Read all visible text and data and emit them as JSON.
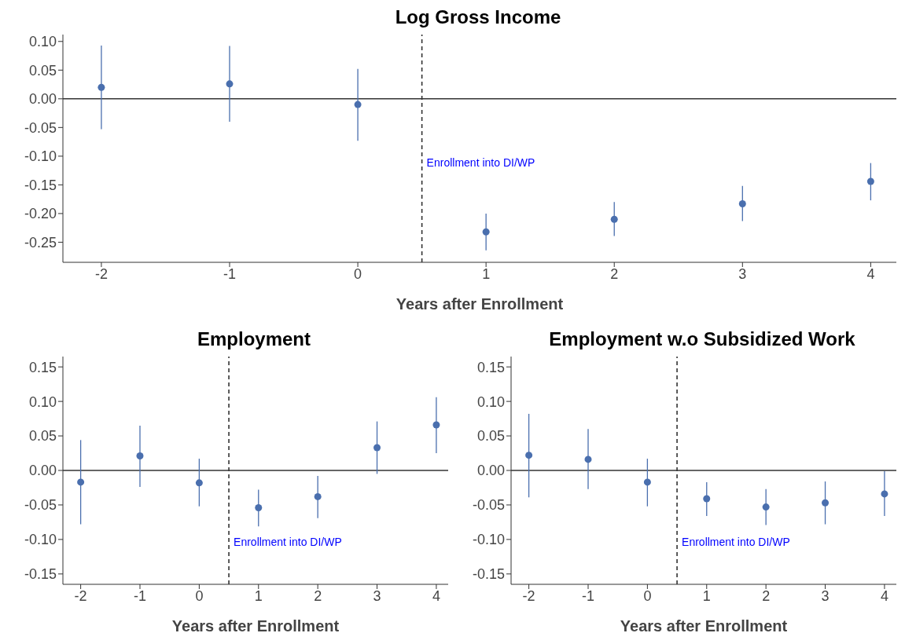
{
  "chart_data": [
    {
      "type": "scatter",
      "title": "Log Gross Income",
      "xlabel": "Years after Enrollment",
      "x": [
        -2,
        -1,
        0,
        1,
        2,
        3,
        4
      ],
      "xlim": [
        -2.3,
        4.2
      ],
      "xticks": [
        -2,
        -1,
        0,
        1,
        2,
        3,
        4
      ],
      "ylim": [
        -0.285,
        0.112
      ],
      "yticks": [
        {
          "value": 0.1,
          "label": "0.10"
        },
        {
          "value": 0.05,
          "label": "0.05"
        },
        {
          "value": 0,
          "label": "0.00"
        },
        {
          "value": -0.05,
          "label": "-0.05"
        },
        {
          "value": -0.1,
          "label": "-0.10"
        },
        {
          "value": -0.15,
          "label": "-0.15"
        },
        {
          "value": -0.2,
          "label": "-0.20"
        },
        {
          "value": -0.25,
          "label": "-0.25"
        }
      ],
      "grid": false,
      "marker": "circle",
      "series": [
        {
          "color": "#4a6fae",
          "values": [
            0.02,
            0.026,
            -0.01,
            -0.232,
            -0.21,
            -0.183,
            -0.144
          ],
          "errors": [
            [
              -0.053,
              0.093
            ],
            [
              -0.04,
              0.092
            ],
            [
              -0.073,
              0.052
            ],
            [
              -0.264,
              -0.2
            ],
            [
              -0.239,
              -0.18
            ],
            [
              -0.213,
              -0.152
            ],
            [
              -0.177,
              -0.112
            ]
          ]
        }
      ],
      "ref_lines": [
        {
          "axis": "y",
          "value": 0,
          "color": "#333333",
          "line_style": "solid"
        },
        {
          "axis": "x",
          "value": 0.5,
          "label": "Enrollment into DI/WP",
          "color": "#333333",
          "line_style": "dashed"
        }
      ]
    },
    {
      "type": "scatter",
      "title": "Employment",
      "xlabel": "Years after Enrollment",
      "x": [
        -2,
        -1,
        0,
        1,
        2,
        3,
        4
      ],
      "xlim": [
        -2.3,
        4.2
      ],
      "xticks": [
        -2,
        -1,
        0,
        1,
        2,
        3,
        4
      ],
      "ylim": [
        -0.165,
        0.165
      ],
      "yticks": [
        {
          "value": 0.15,
          "label": "0.15"
        },
        {
          "value": 0.1,
          "label": "0.10"
        },
        {
          "value": 0.05,
          "label": "0.05"
        },
        {
          "value": 0,
          "label": "0.00"
        },
        {
          "value": -0.05,
          "label": "-0.05"
        },
        {
          "value": -0.1,
          "label": "-0.10"
        },
        {
          "value": -0.15,
          "label": "-0.15"
        }
      ],
      "grid": false,
      "marker": "circle",
      "series": [
        {
          "color": "#4a6fae",
          "values": [
            -0.017,
            0.021,
            -0.018,
            -0.054,
            -0.038,
            0.033,
            0.066
          ],
          "errors": [
            [
              -0.078,
              0.044
            ],
            [
              -0.024,
              0.065
            ],
            [
              -0.052,
              0.017
            ],
            [
              -0.081,
              -0.028
            ],
            [
              -0.069,
              -0.008
            ],
            [
              -0.005,
              0.071
            ],
            [
              0.025,
              0.106
            ]
          ]
        }
      ],
      "ref_lines": [
        {
          "axis": "y",
          "value": 0,
          "color": "#333333",
          "line_style": "solid"
        },
        {
          "axis": "x",
          "value": 0.5,
          "label": "Enrollment into DI/WP",
          "color": "#333333",
          "line_style": "dashed"
        }
      ]
    },
    {
      "type": "scatter",
      "title": "Employment w.o Subsidized Work",
      "xlabel": "Years after Enrollment",
      "x": [
        -2,
        -1,
        0,
        1,
        2,
        3,
        4
      ],
      "xlim": [
        -2.3,
        4.2
      ],
      "xticks": [
        -2,
        -1,
        0,
        1,
        2,
        3,
        4
      ],
      "ylim": [
        -0.165,
        0.165
      ],
      "yticks": [
        {
          "value": 0.15,
          "label": "0.15"
        },
        {
          "value": 0.1,
          "label": "0.10"
        },
        {
          "value": 0.05,
          "label": "0.05"
        },
        {
          "value": 0,
          "label": "0.00"
        },
        {
          "value": -0.05,
          "label": "-0.05"
        },
        {
          "value": -0.1,
          "label": "-0.10"
        },
        {
          "value": -0.15,
          "label": "-0.15"
        }
      ],
      "grid": false,
      "marker": "circle",
      "series": [
        {
          "color": "#4a6fae",
          "values": [
            0.022,
            0.016,
            -0.017,
            -0.041,
            -0.053,
            -0.047,
            -0.034
          ],
          "errors": [
            [
              -0.039,
              0.082
            ],
            [
              -0.027,
              0.06
            ],
            [
              -0.052,
              0.017
            ],
            [
              -0.066,
              -0.017
            ],
            [
              -0.079,
              -0.027
            ],
            [
              -0.078,
              -0.016
            ],
            [
              -0.066,
              -0.001
            ]
          ]
        }
      ],
      "ref_lines": [
        {
          "axis": "y",
          "value": 0,
          "color": "#333333",
          "line_style": "solid"
        },
        {
          "axis": "x",
          "value": 0.5,
          "label": "Enrollment into DI/WP",
          "color": "#333333",
          "line_style": "dashed"
        }
      ]
    }
  ]
}
